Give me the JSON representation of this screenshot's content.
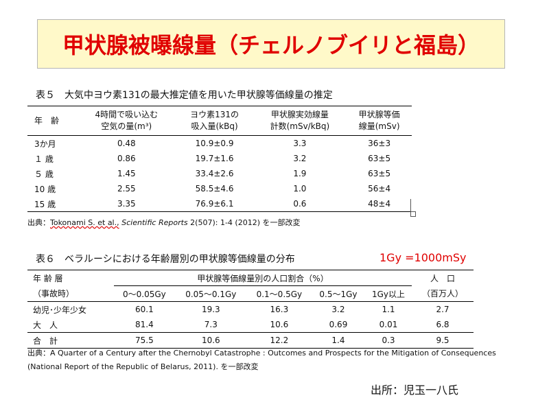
{
  "title": "甲状腺被曝線量（チェルノブイリと福島）",
  "table5": {
    "caption": "表５　大気中ヨウ素131の最大推定値を用いた甲状腺等価線量の推定",
    "headers": [
      [
        "年　齢",
        ""
      ],
      [
        "4時間で吸い込む",
        "空気の量(m³)"
      ],
      [
        "ヨウ素131の",
        "吸入量(kBq)"
      ],
      [
        "甲状腺実効線量",
        "計数(mSv/kBq)"
      ],
      [
        "甲状腺等価",
        "線量(mSv)"
      ]
    ],
    "rows": [
      [
        "3か月",
        "0.48",
        "10.9±0.9",
        "3.3",
        "36±3"
      ],
      [
        "１ 歳",
        "0.86",
        "19.7±1.6",
        "3.2",
        "63±5"
      ],
      [
        "５ 歳",
        "1.45",
        "33.4±2.6",
        "1.9",
        "63±5"
      ],
      [
        "10 歳",
        "2.55",
        "58.5±4.6",
        "1.0",
        "56±4"
      ],
      [
        "15 歳",
        "3.35",
        "76.9±6.1",
        "0.6",
        "48±4"
      ]
    ],
    "source": {
      "label": "出典：",
      "author": "Tokonami S. et al.,",
      "journal": "Scientific Reports",
      "rest": "2(507): 1-4 (2012) を一部改変"
    }
  },
  "unit_note": "1Gy =1000mSy",
  "table6": {
    "caption": "表６　ベラルーシにおける年齢層別の甲状腺等価線量の分布",
    "head_group": [
      "年 齢 層",
      "（事故時）"
    ],
    "head_span": "甲状腺等価線量別の人口割合（%）",
    "head_bins": [
      "0〜0.05Gy",
      "0.05〜0.1Gy",
      "0.1〜0.5Gy",
      "0.5〜1Gy",
      "1Gy以上"
    ],
    "head_pop": [
      "人　口",
      "（百万人）"
    ],
    "rows": [
      [
        "幼児･少年少女",
        "60.1",
        "19.3",
        "16.3",
        "3.2",
        "1.1",
        "2.7"
      ],
      [
        "大　人",
        "81.4",
        "7.3",
        "10.6",
        "0.69",
        "0.01",
        "6.8"
      ],
      [
        "合　計",
        "75.5",
        "10.6",
        "12.2",
        "1.4",
        "0.3",
        "9.5"
      ]
    ],
    "source_line1": "出典：A Quarter of a Century after the Chernobyl Catastrophe : Outcomes and Prospects for the Mitigation of Consequences",
    "source_line2": "(National Report of the Republic of Belarus, 2011). を一部改変"
  },
  "credit": "出所：児玉一八氏"
}
